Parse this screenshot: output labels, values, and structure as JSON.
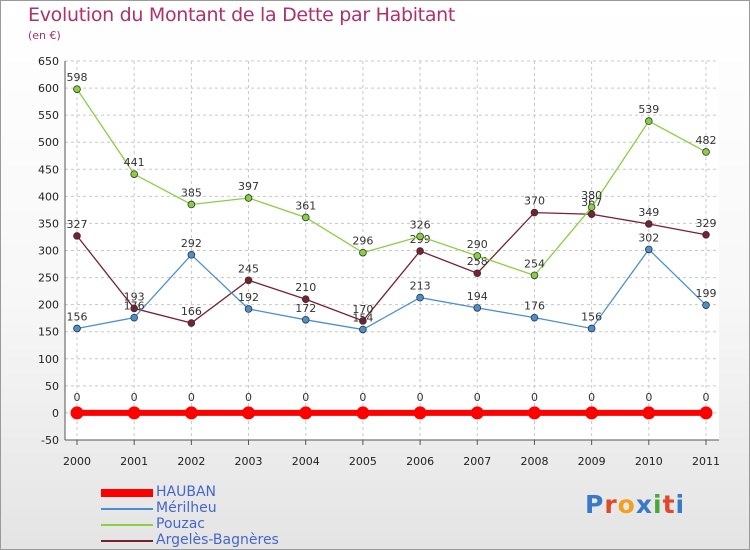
{
  "title": "Evolution du Montant de la Dette par Habitant",
  "subtitle": "(en €)",
  "logo": {
    "text": "Proxiti",
    "letter_colors": [
      "#3a78c8",
      "#e0492a",
      "#f0a020",
      "#3a78c8",
      "#49a83a",
      "#e0492a",
      "#3a78c8"
    ]
  },
  "chart_data": {
    "type": "line",
    "x": [
      "2000",
      "2001",
      "2002",
      "2003",
      "2004",
      "2005",
      "2006",
      "2007",
      "2008",
      "2009",
      "2010",
      "2011"
    ],
    "ylim": [
      -50,
      650
    ],
    "yticks": [
      -50,
      0,
      50,
      100,
      150,
      200,
      250,
      300,
      350,
      400,
      450,
      500,
      550,
      600,
      650
    ],
    "grid": true,
    "legend_position": "bottom-left",
    "series": [
      {
        "name": "HAUBAN",
        "color": "#ff0000",
        "values": [
          0,
          0,
          0,
          0,
          0,
          0,
          0,
          0,
          0,
          0,
          0,
          0
        ]
      },
      {
        "name": "Mérilheu",
        "color": "#4a90d0",
        "values": [
          156,
          176,
          292,
          192,
          172,
          154,
          213,
          194,
          176,
          156,
          302,
          199
        ]
      },
      {
        "name": "Pouzac",
        "color": "#88d040",
        "values": [
          598,
          441,
          385,
          397,
          361,
          296,
          326,
          290,
          254,
          380,
          539,
          482
        ]
      },
      {
        "name": "Argelès-Bagnères",
        "color": "#7a2030",
        "values": [
          327,
          193,
          166,
          245,
          210,
          170,
          299,
          258,
          370,
          367,
          349,
          329
        ]
      }
    ]
  }
}
